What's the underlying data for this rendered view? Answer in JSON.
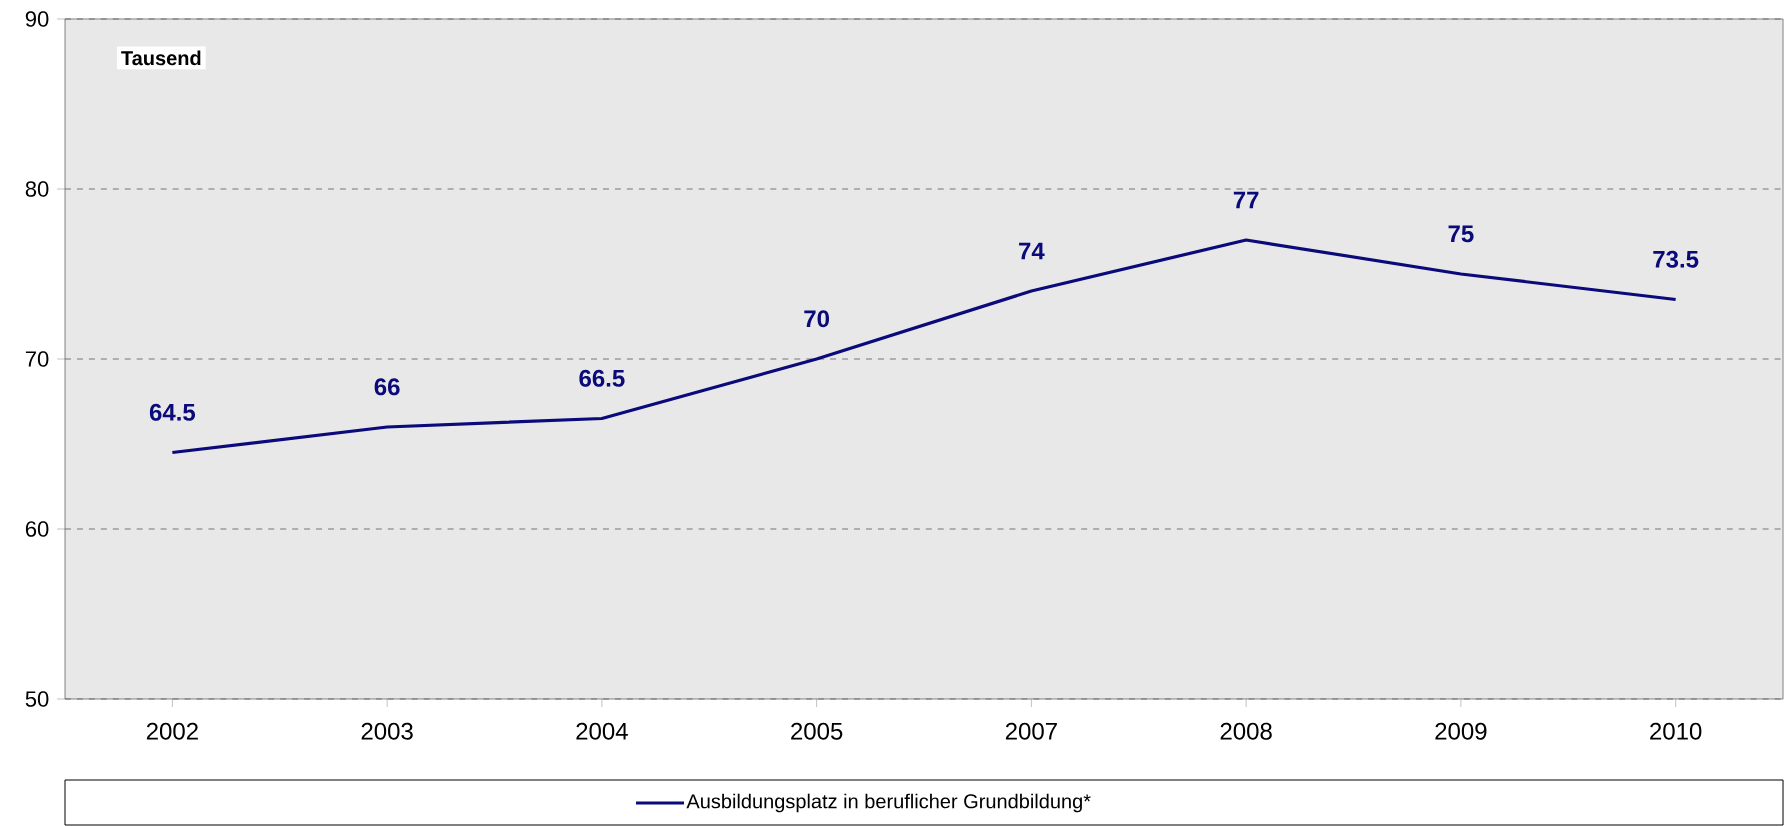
{
  "chart_data": {
    "type": "line",
    "ylabel": "Tausend",
    "categories": [
      "2002",
      "2003",
      "2004",
      "2005",
      "2007",
      "2008",
      "2009",
      "2010"
    ],
    "series": [
      {
        "name": "Ausbildungsplatz in beruflicher Grundbildung*",
        "color": "#0a0a7a",
        "values": [
          64.5,
          66,
          66.5,
          70,
          74,
          77,
          75,
          73.5
        ]
      }
    ],
    "ylim": [
      50,
      90
    ],
    "yticks": [
      50,
      60,
      70,
      80,
      90
    ],
    "grid": "y",
    "legend": "bottom",
    "data_labels": true,
    "marker": "none",
    "line_style": "solid"
  }
}
